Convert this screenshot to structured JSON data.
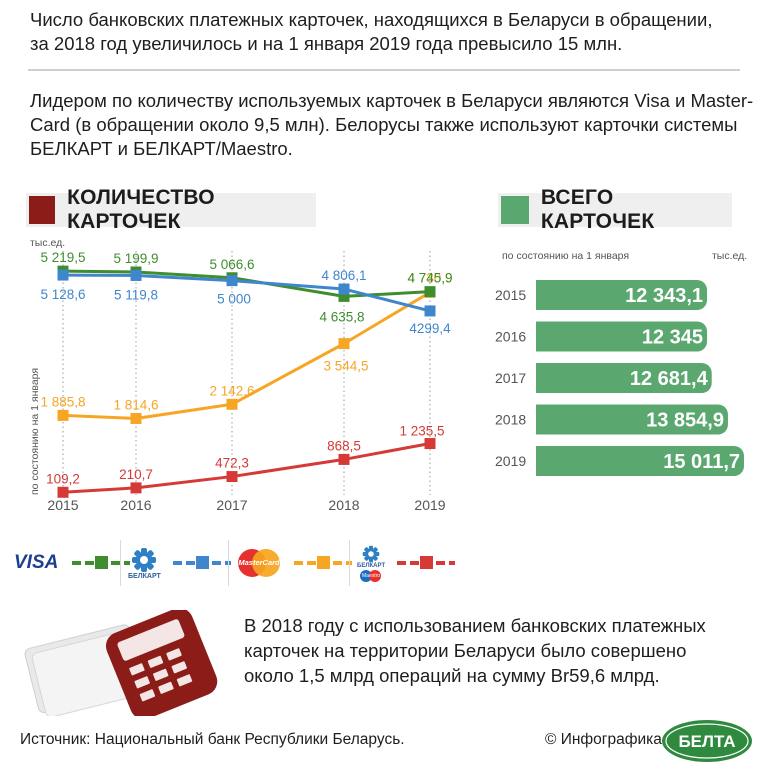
{
  "intro": {
    "line1": "Число банковских платежных карточек, находящихся в Беларуси в обращении,",
    "line2": "за 2018 год увеличилось и на 1 января 2019 года превысило 15 млн.",
    "line3": "Лидером по количеству используемых карточек в Беларуси являются Visa и Master-",
    "line4": "Card (в обращении около 9,5 млн). Белорусы также используют карточки системы",
    "line5": "БЕЛКАРТ и БЕЛКАРТ/Maestro."
  },
  "colors": {
    "visa": "#3e8d2e",
    "belkart": "#3f86cd",
    "mastercard": "#f6a623",
    "belkart_maestro": "#d53a36",
    "total_bar": "#5aa86f",
    "head_red": "#8b1c17",
    "head_green": "#5aa86f"
  },
  "chart_data": [
    {
      "type": "line",
      "title": "КОЛИЧЕСТВО КАРТОЧЕК",
      "unit_label": "тыс.ед.",
      "ylabel": "по состоянию на 1 января",
      "x": [
        "2015",
        "2016",
        "2017",
        "2018",
        "2019"
      ],
      "ylim": [
        0,
        5500
      ],
      "grid": false,
      "series": [
        {
          "key": "visa",
          "values": [
            5219.5,
            5199.9,
            5066.6,
            4635.8,
            4745.9
          ],
          "labels": [
            "5 219,5",
            "5 199,9",
            "5 066,6",
            "4 635,8",
            "4 745,9"
          ]
        },
        {
          "key": "belkart",
          "values": [
            5128.6,
            5119.8,
            5000,
            4806.1,
            4299.4
          ],
          "labels": [
            "5 128,6",
            "5 119,8",
            "5 000",
            "4 806,1",
            "4299,4"
          ]
        },
        {
          "key": "mastercard",
          "values": [
            1885.8,
            1814.6,
            2142.6,
            3544.5,
            4730.9
          ],
          "labels": [
            "1 885,8",
            "1 814,6",
            "2 142,6",
            "3 544,5",
            "4 730,9"
          ]
        },
        {
          "key": "belkart_maestro",
          "values": [
            109.2,
            210.7,
            472.3,
            868.5,
            1235.5
          ],
          "labels": [
            "109,2",
            "210,7",
            "472,3",
            "868,5",
            "1 235,5"
          ]
        }
      ]
    },
    {
      "type": "bar",
      "title": "ВСЕГО КАРТОЧЕК",
      "unit_label": "тыс.ед.",
      "note": "по состоянию на 1 января",
      "categories": [
        "2015",
        "2016",
        "2017",
        "2018",
        "2019"
      ],
      "values": [
        12343.1,
        12345,
        12681.4,
        13854.9,
        15011.7
      ],
      "labels": [
        "12 343,1",
        "12 345",
        "12 681,4",
        "13 854,9",
        "15 011,7"
      ]
    }
  ],
  "legend": {
    "visa": "VISA",
    "belkart": "БЕЛКАРТ",
    "mastercard": "MasterCard",
    "belkart_maestro_top": "БЕЛКАРТ",
    "belkart_maestro_bottom": "Maestro"
  },
  "bottom": {
    "line1": "В 2018 году с использованием банковских платежных",
    "line2": "карточек на территории Беларуси было совершено",
    "line3": "около 1,5 млрд операций на сумму Br59,6 млрд."
  },
  "source": "Источник: Национальный банк Республики Беларусь.",
  "copyright": "© Инфографика",
  "logo_text": "БЕЛТА"
}
